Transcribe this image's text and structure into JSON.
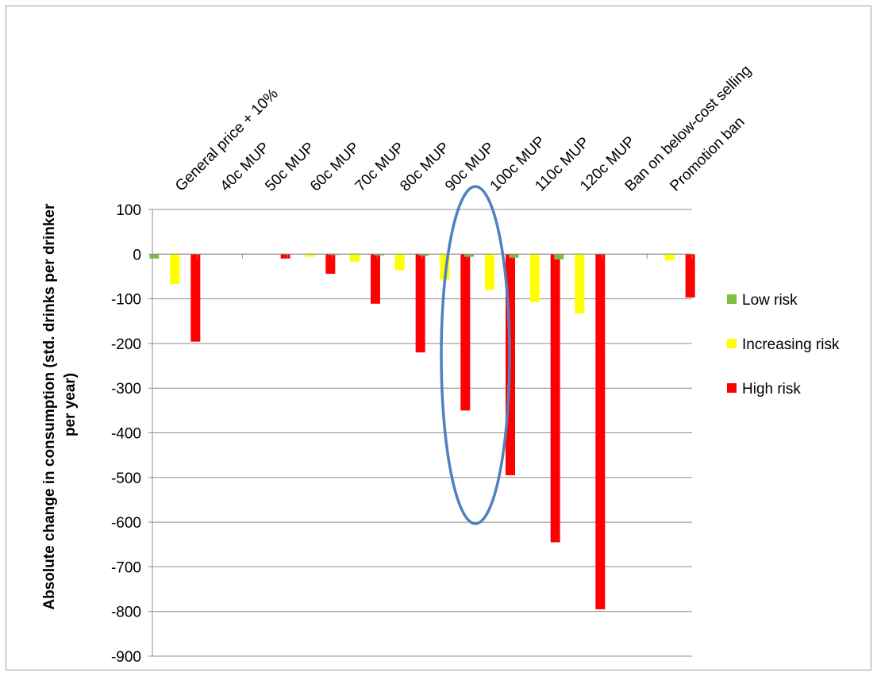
{
  "chart_data": {
    "type": "bar",
    "title": "",
    "xlabel": "",
    "ylabel": "Absolute change in consumption (std. drinks per drinker per year)",
    "ylabel_lines": [
      "Absolute change in consumption (std. drinks per drinker",
      "per year)"
    ],
    "ylim": [
      -900,
      100
    ],
    "yticks": [
      100,
      0,
      -100,
      -200,
      -300,
      -400,
      -500,
      -600,
      -700,
      -800,
      -900
    ],
    "grid": true,
    "legend_position": "right",
    "categories": [
      "General price + 10%",
      "40c MUP",
      "50c MUP",
      "60c MUP",
      "70c MUP",
      "80c MUP",
      "90c MUP",
      "100c MUP",
      "110c MUP",
      "120c MUP",
      "Ban on below-cost selling",
      "Promotion ban"
    ],
    "series": [
      {
        "name": "Low risk",
        "color": "#7dc142",
        "values": [
          -10,
          0,
          0,
          -1,
          -2,
          -3,
          -4,
          -6,
          -8,
          -12,
          0,
          -1
        ]
      },
      {
        "name": "Increasing risk",
        "color": "#ffff00",
        "values": [
          -67,
          0,
          -1,
          -6,
          -17,
          -36,
          -57,
          -80,
          -107,
          -133,
          0,
          -14
        ]
      },
      {
        "name": "High risk",
        "color": "#ff0000",
        "values": [
          -196,
          0,
          -10,
          -44,
          -111,
          -220,
          -350,
          -495,
          -645,
          -795,
          0,
          -97
        ]
      }
    ],
    "annotations": [
      {
        "type": "ellipse",
        "color": "#4f81bd",
        "around_category": "100c MUP"
      }
    ]
  }
}
